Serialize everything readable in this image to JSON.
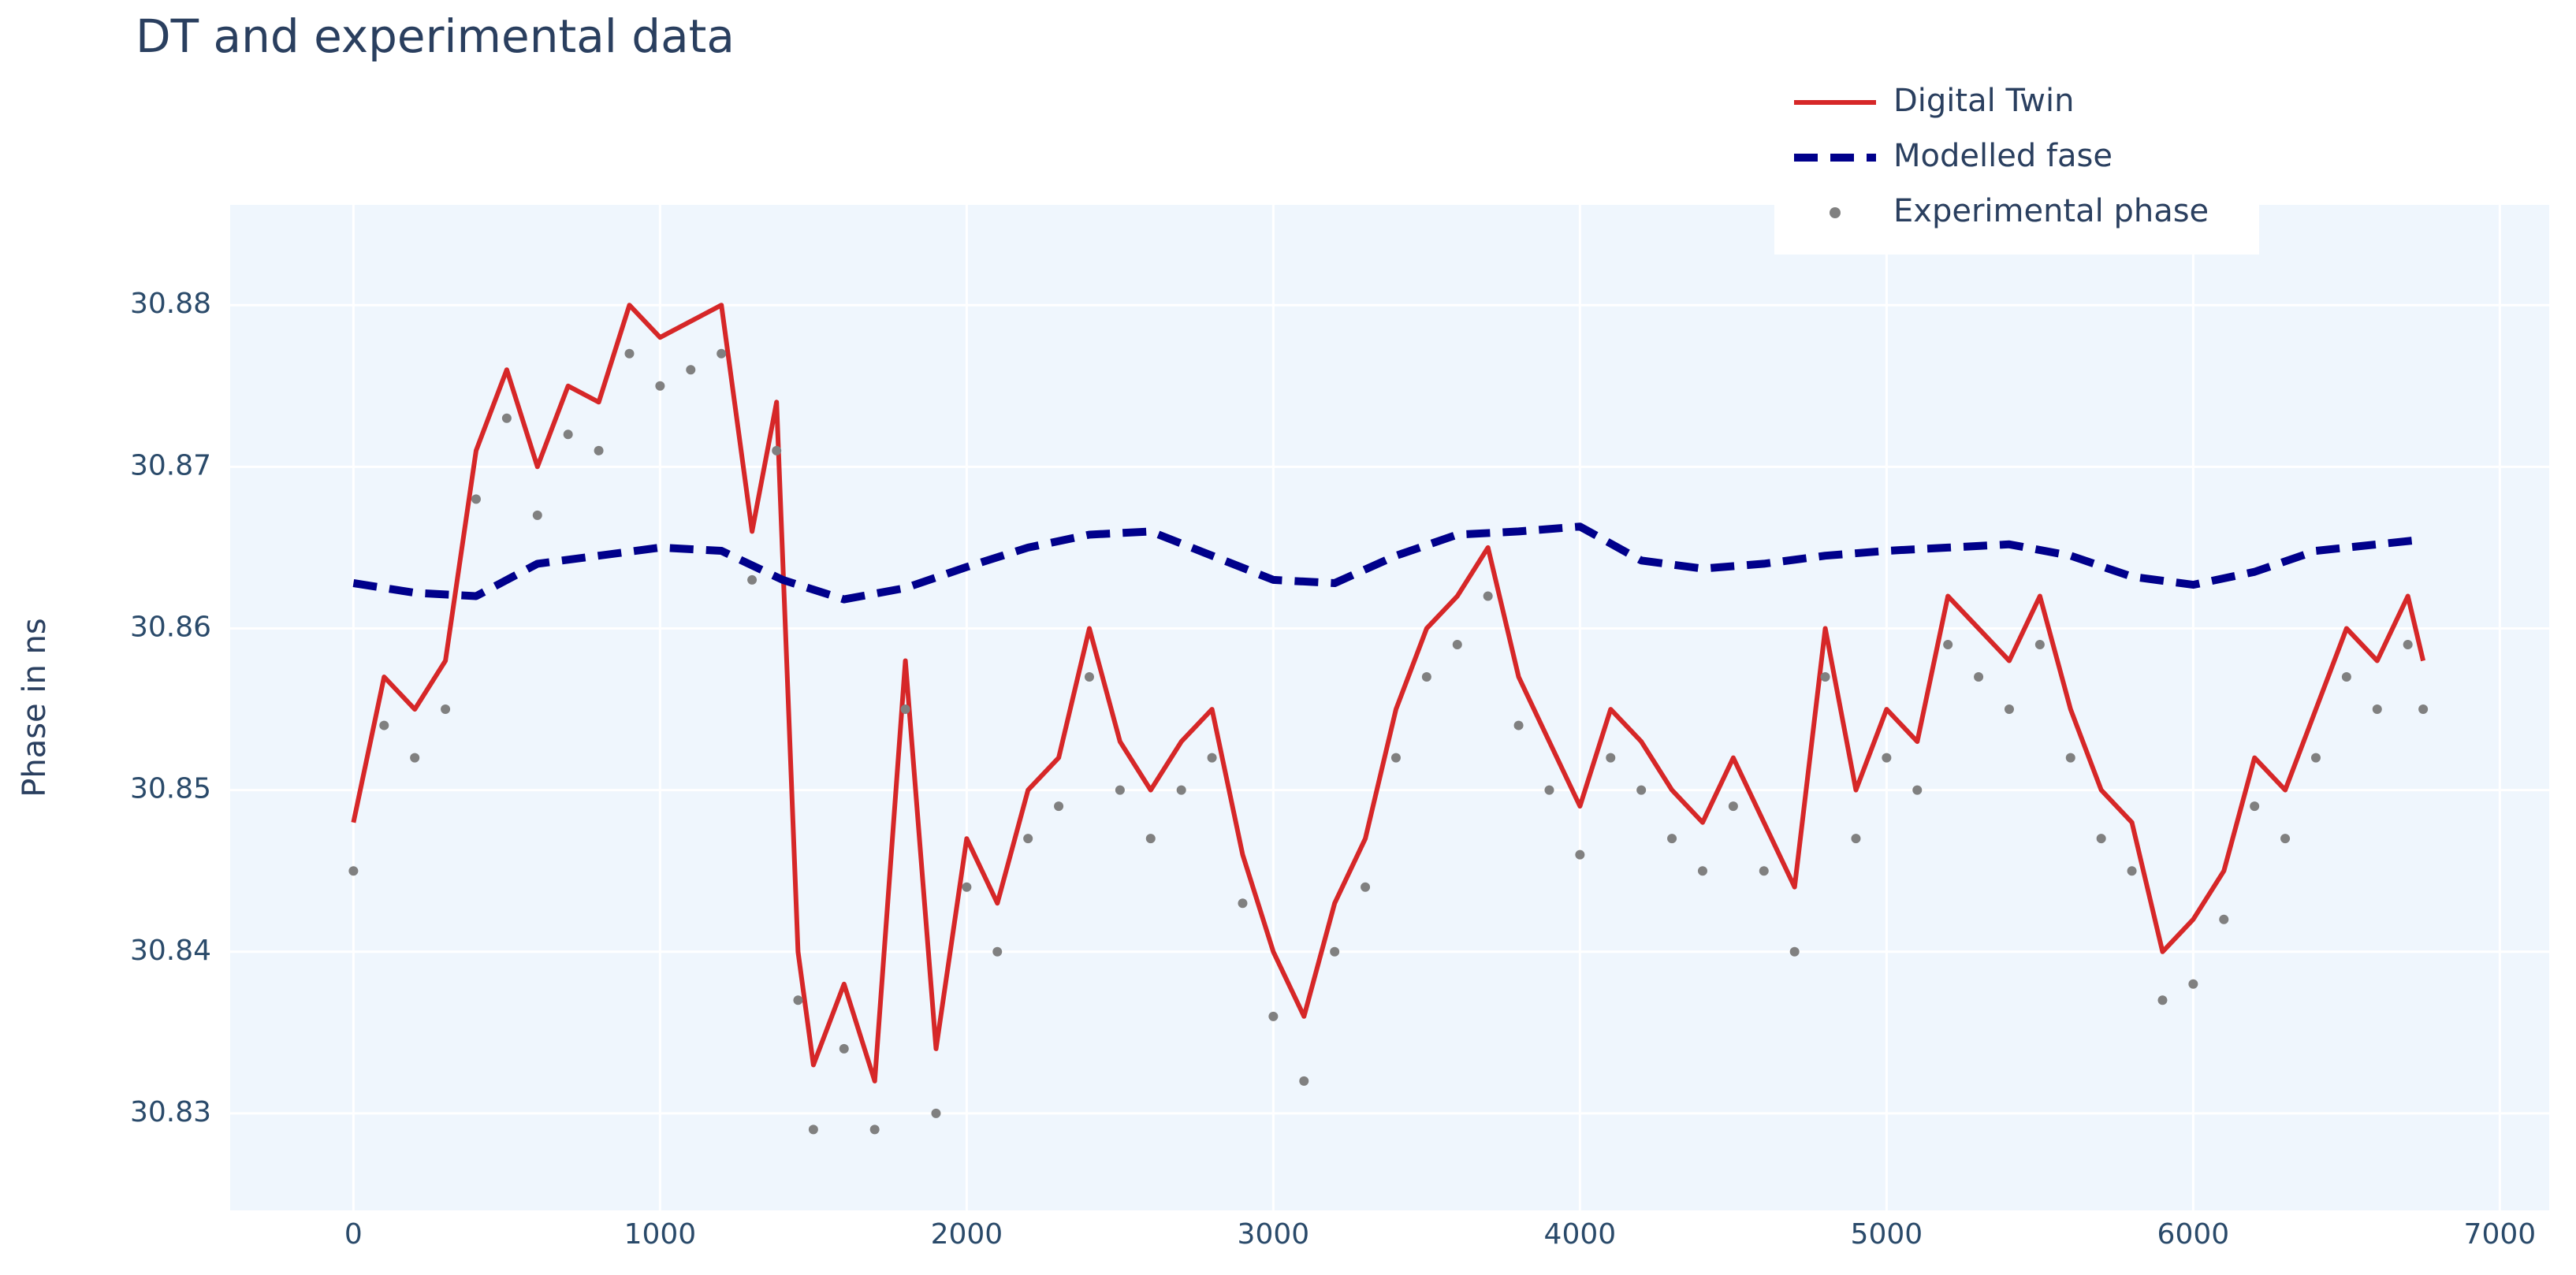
{
  "chart_data": {
    "type": "line",
    "title": "DT and experimental data",
    "ylabel": "Phase in ns",
    "xlim": [
      -402,
      7161
    ],
    "ylim": [
      30.824,
      30.8862
    ],
    "xticks": [
      0,
      1000,
      2000,
      3000,
      4000,
      5000,
      6000,
      7000
    ],
    "yticks": [
      30.83,
      30.84,
      30.85,
      30.86,
      30.87,
      30.88
    ],
    "grid": true,
    "legend": "top-right",
    "series": [
      {
        "name": "Digital Twin",
        "color": "#d62728",
        "style": "solid",
        "x": [
          0,
          100,
          200,
          300,
          400,
          500,
          600,
          700,
          800,
          900,
          1000,
          1100,
          1200,
          1300,
          1380,
          1450,
          1500,
          1600,
          1700,
          1800,
          1900,
          2000,
          2100,
          2200,
          2300,
          2400,
          2500,
          2600,
          2700,
          2800,
          2900,
          3000,
          3100,
          3200,
          3300,
          3400,
          3500,
          3600,
          3700,
          3800,
          3900,
          4000,
          4100,
          4200,
          4300,
          4400,
          4500,
          4600,
          4700,
          4800,
          4900,
          5000,
          5100,
          5200,
          5300,
          5400,
          5500,
          5600,
          5700,
          5800,
          5900,
          6000,
          6100,
          6200,
          6300,
          6400,
          6500,
          6600,
          6700,
          6750
        ],
        "values": [
          30.848,
          30.857,
          30.855,
          30.858,
          30.871,
          30.876,
          30.87,
          30.875,
          30.874,
          30.88,
          30.878,
          30.879,
          30.88,
          30.866,
          30.874,
          30.84,
          30.833,
          30.838,
          30.832,
          30.858,
          30.834,
          30.847,
          30.843,
          30.85,
          30.852,
          30.86,
          30.853,
          30.85,
          30.853,
          30.855,
          30.846,
          30.84,
          30.836,
          30.843,
          30.847,
          30.855,
          30.86,
          30.862,
          30.865,
          30.857,
          30.853,
          30.849,
          30.855,
          30.853,
          30.85,
          30.848,
          30.852,
          30.848,
          30.844,
          30.86,
          30.85,
          30.855,
          30.853,
          30.862,
          30.86,
          30.858,
          30.862,
          30.855,
          30.85,
          30.848,
          30.84,
          30.842,
          30.845,
          30.852,
          30.85,
          30.855,
          30.86,
          30.858,
          30.862,
          30.858
        ]
      },
      {
        "name": "Modelled fase",
        "color": "#00008b",
        "style": "dash",
        "x": [
          0,
          200,
          400,
          600,
          800,
          1000,
          1200,
          1400,
          1600,
          1800,
          2000,
          2200,
          2400,
          2600,
          2800,
          3000,
          3200,
          3400,
          3600,
          3800,
          4000,
          4200,
          4400,
          4600,
          4800,
          5000,
          5200,
          5400,
          5600,
          5800,
          6000,
          6200,
          6400,
          6600,
          6750
        ],
        "values": [
          30.8628,
          30.8622,
          30.862,
          30.864,
          30.8645,
          30.865,
          30.8648,
          30.863,
          30.8618,
          30.8625,
          30.8638,
          30.865,
          30.8658,
          30.866,
          30.8645,
          30.863,
          30.8628,
          30.8645,
          30.8658,
          30.866,
          30.8663,
          30.8642,
          30.8637,
          30.864,
          30.8645,
          30.8648,
          30.865,
          30.8652,
          30.8645,
          30.8632,
          30.8627,
          30.8635,
          30.8648,
          30.8652,
          30.8655
        ]
      },
      {
        "name": "Experimental phase",
        "color": "#808080",
        "style": "markers",
        "x": [
          0,
          100,
          200,
          300,
          400,
          500,
          600,
          700,
          800,
          900,
          1000,
          1100,
          1200,
          1300,
          1380,
          1450,
          1500,
          1600,
          1700,
          1800,
          1900,
          2000,
          2100,
          2200,
          2300,
          2400,
          2500,
          2600,
          2700,
          2800,
          2900,
          3000,
          3100,
          3200,
          3300,
          3400,
          3500,
          3600,
          3700,
          3800,
          3900,
          4000,
          4100,
          4200,
          4300,
          4400,
          4500,
          4600,
          4700,
          4800,
          4900,
          5000,
          5100,
          5200,
          5300,
          5400,
          5500,
          5600,
          5700,
          5800,
          5900,
          6000,
          6100,
          6200,
          6300,
          6400,
          6500,
          6600,
          6700,
          6750
        ],
        "values": [
          30.845,
          30.854,
          30.852,
          30.855,
          30.868,
          30.873,
          30.867,
          30.872,
          30.871,
          30.877,
          30.875,
          30.876,
          30.877,
          30.863,
          30.871,
          30.837,
          30.829,
          30.834,
          30.829,
          30.855,
          30.83,
          30.844,
          30.84,
          30.847,
          30.849,
          30.857,
          30.85,
          30.847,
          30.85,
          30.852,
          30.843,
          30.836,
          30.832,
          30.84,
          30.844,
          30.852,
          30.857,
          30.859,
          30.862,
          30.854,
          30.85,
          30.846,
          30.852,
          30.85,
          30.847,
          30.845,
          30.849,
          30.845,
          30.84,
          30.857,
          30.847,
          30.852,
          30.85,
          30.859,
          30.857,
          30.855,
          30.859,
          30.852,
          30.847,
          30.845,
          30.837,
          30.838,
          30.842,
          30.849,
          30.847,
          30.852,
          30.857,
          30.855,
          30.859,
          30.855
        ]
      }
    ]
  }
}
